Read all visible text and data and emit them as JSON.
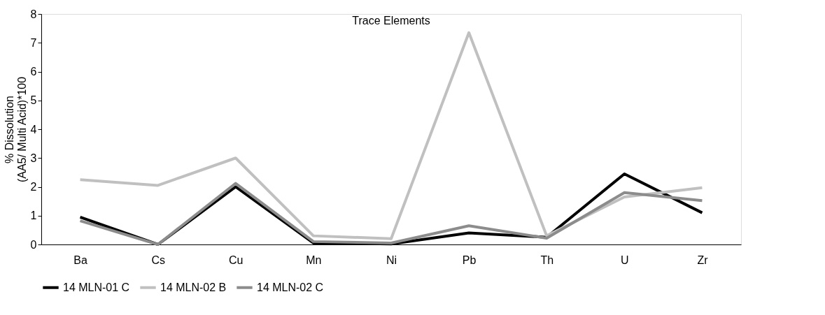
{
  "chart_data": {
    "type": "line",
    "title": "Trace Elements",
    "ylabel": "% Dissolution\n(AA5/ Multi Acid)*100",
    "categories": [
      "Ba",
      "Cs",
      "Cu",
      "Mn",
      "Ni",
      "Pb",
      "Th",
      "U",
      "Zr"
    ],
    "series": [
      {
        "name": "14 MLN-01 C",
        "color": "#000000",
        "values": [
          0.95,
          0.0,
          2.0,
          0.05,
          0.02,
          0.4,
          0.25,
          2.45,
          1.1
        ]
      },
      {
        "name": "14 MLN-02 B",
        "color": "#c0c0c0",
        "values": [
          2.25,
          2.05,
          3.0,
          0.3,
          0.2,
          7.35,
          0.3,
          1.65,
          1.97
        ]
      },
      {
        "name": "14 MLN-02 C",
        "color": "#8c8c8c",
        "values": [
          0.82,
          0.0,
          2.12,
          0.1,
          0.05,
          0.65,
          0.22,
          1.8,
          1.52
        ]
      }
    ],
    "ylim": [
      0,
      8
    ],
    "yticks": [
      0,
      1,
      2,
      3,
      4,
      5,
      6,
      7,
      8
    ],
    "grid": false,
    "legend": "bottom",
    "marker": "none",
    "line_style": "solid"
  }
}
